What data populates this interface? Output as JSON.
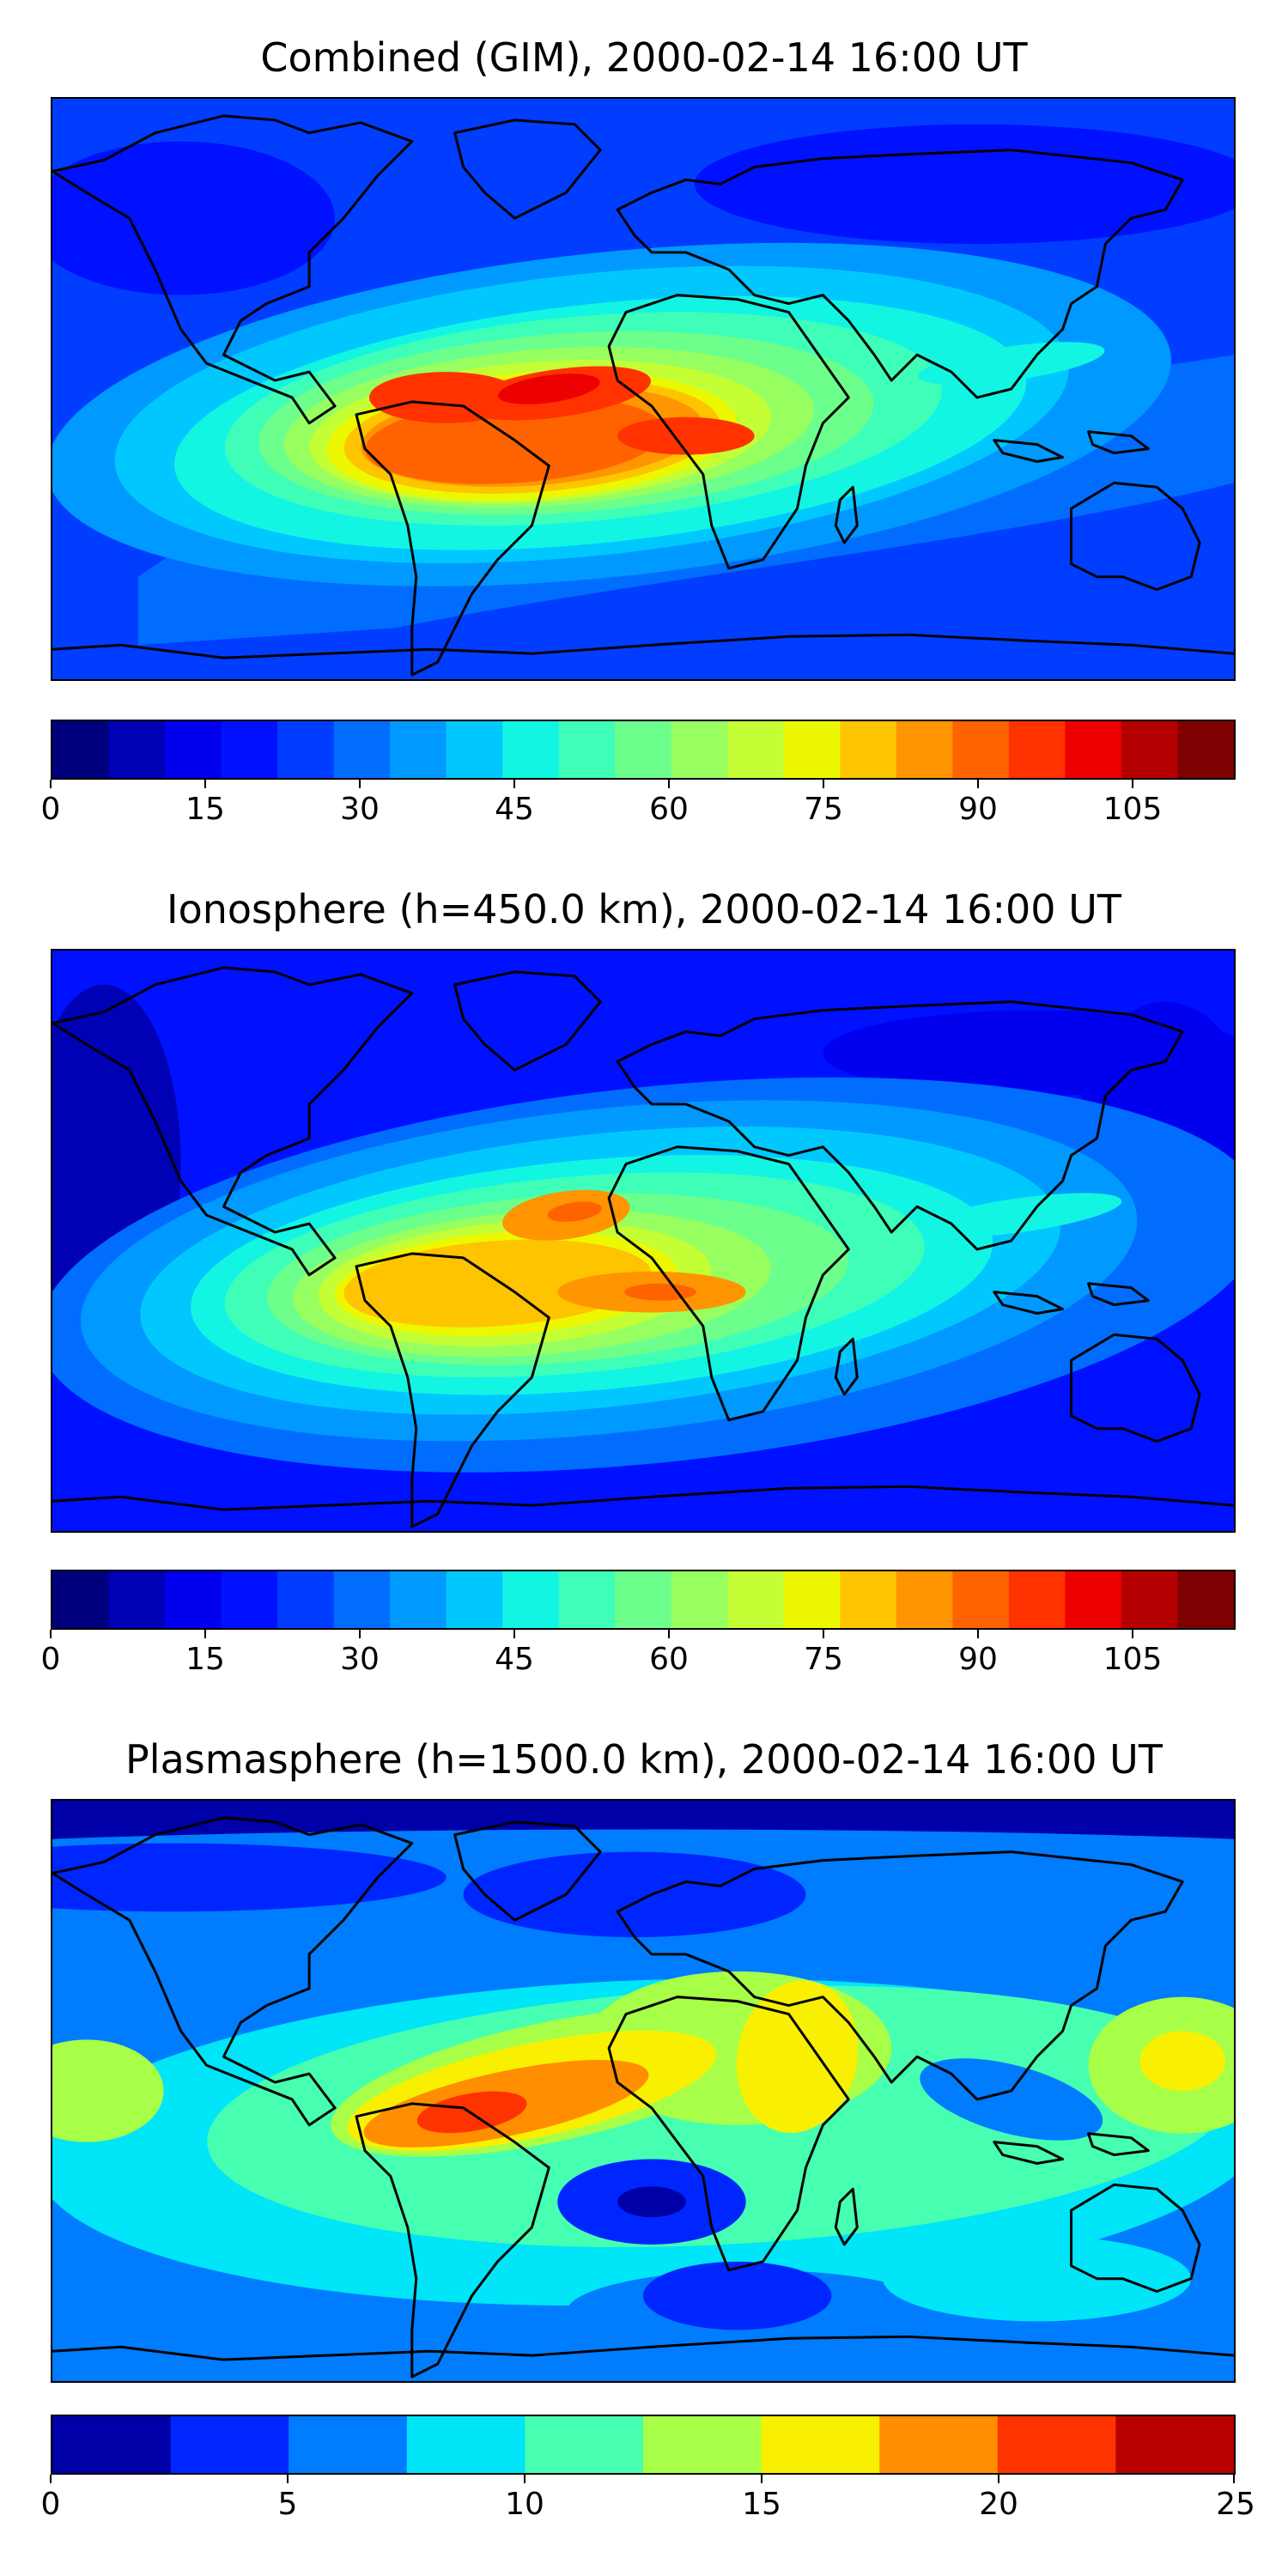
{
  "chart_data": [
    {
      "type": "heatmap",
      "title": "Combined (GIM), 2000-02-14 16:00 UT",
      "colorbar": {
        "min": 0,
        "max": 115,
        "step": 5,
        "ticks": [
          0,
          15,
          30,
          45,
          60,
          75,
          90,
          105
        ],
        "colors": [
          "#00007f",
          "#0000b5",
          "#0000ee",
          "#0011ff",
          "#003dff",
          "#006dff",
          "#0099ff",
          "#00c8ff",
          "#13f5e3",
          "#3fffb8",
          "#6cff8b",
          "#97ff60",
          "#c3ff34",
          "#edf800",
          "#ffc400",
          "#ff9500",
          "#ff6300",
          "#ff3200",
          "#ed0000",
          "#b40000",
          "#7f0000"
        ]
      },
      "features": {
        "map": "world coastlines, equirectangular projection",
        "peak_region": "tropical Atlantic / South America / Africa",
        "peak_value_approx": 100
      }
    },
    {
      "type": "heatmap",
      "title": "Ionosphere  (h=450.0 km), 2000-02-14 16:00 UT",
      "colorbar": {
        "min": 0,
        "max": 115,
        "step": 5,
        "ticks": [
          0,
          15,
          30,
          45,
          60,
          75,
          90,
          105
        ],
        "colors": [
          "#00007f",
          "#0000b5",
          "#0000ee",
          "#0011ff",
          "#003dff",
          "#006dff",
          "#0099ff",
          "#00c8ff",
          "#13f5e3",
          "#3fffb8",
          "#6cff8b",
          "#97ff60",
          "#c3ff34",
          "#edf800",
          "#ffc400",
          "#ff9500",
          "#ff6300",
          "#ff3200",
          "#ed0000",
          "#b40000",
          "#7f0000"
        ]
      },
      "features": {
        "map": "world coastlines, equirectangular projection",
        "peak_region": "tropical Atlantic / South America / Africa",
        "peak_value_approx": 85
      }
    },
    {
      "type": "heatmap",
      "title": "Plasmasphere (h=1500.0 km), 2000-02-14 16:00 UT",
      "colorbar": {
        "min": 0,
        "max": 25,
        "step": 2.5,
        "ticks": [
          0,
          5,
          10,
          15,
          20,
          25
        ],
        "colors": [
          "#0000a8",
          "#0026ff",
          "#007cff",
          "#00e5f8",
          "#47ffb0",
          "#a8ff47",
          "#f8f000",
          "#ff8e00",
          "#ff3300",
          "#b80000"
        ]
      },
      "features": {
        "map": "world coastlines, equirectangular projection",
        "peak_region": "Brazil / tropical Atlantic",
        "peak_value_approx": 21
      }
    }
  ]
}
